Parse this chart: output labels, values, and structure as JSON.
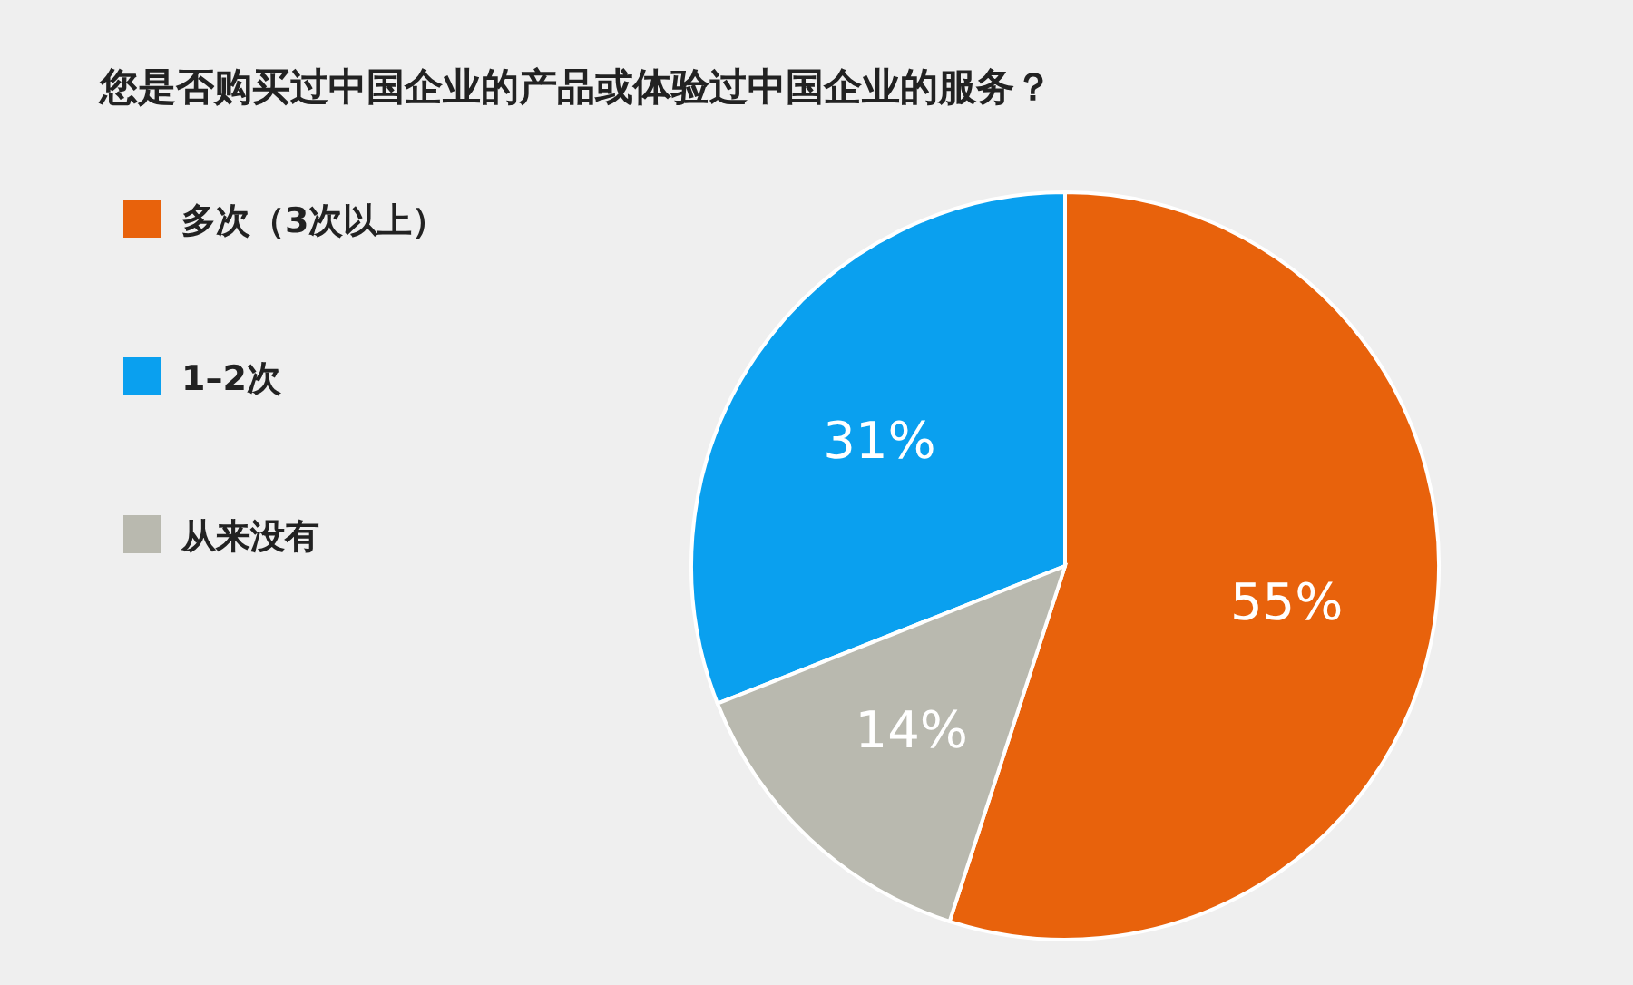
{
  "chart_data": {
    "type": "pie",
    "title": "您是否购买过中国企业的产品或体验过中国企业的服务？",
    "categories": [
      "多次（3次以上）",
      "1–2次",
      "从来没有"
    ],
    "values": [
      55,
      31,
      14
    ],
    "colors": [
      "#e8620c",
      "#0aa0ef",
      "#b9b9af"
    ],
    "value_labels": [
      "55%",
      "31%",
      "14%"
    ],
    "legend": "left"
  }
}
